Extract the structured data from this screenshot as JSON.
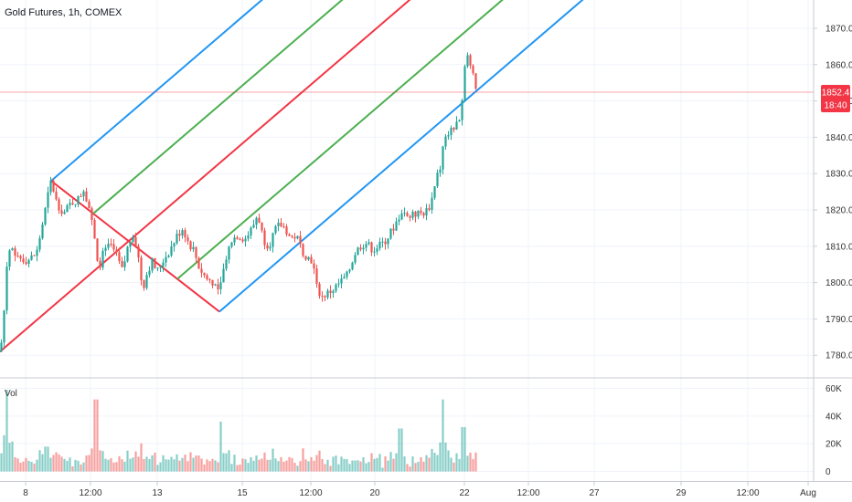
{
  "header": {
    "symbol_label": "Gold Futures, 1h, COMEX"
  },
  "volume_pane": {
    "label": "Vol"
  },
  "price_badge": {
    "price": "1852.4",
    "countdown": "18:40"
  },
  "colors": {
    "up": "#26a69a",
    "down": "#ef5350",
    "pitchfork_outer": "#2196f3",
    "pitchfork_inner": "#4caf50",
    "pitchfork_median": "#f23645"
  },
  "chart_data": {
    "type": "candlestick",
    "title": "Gold Futures, 1h, COMEX",
    "price_axis": {
      "ticks": [
        "1780.0",
        "1790.0",
        "1800.0",
        "1810.0",
        "1820.0",
        "1830.0",
        "1840.0",
        "1850.0",
        "1860.0",
        "1870.0"
      ],
      "ylim": [
        1775,
        1876
      ]
    },
    "time_axis": {
      "ticks": [
        "8",
        "12:00",
        "13",
        "15",
        "12:00",
        "20",
        "22",
        "12:00",
        "27",
        "29",
        "12:00",
        "Aug"
      ]
    },
    "volume_axis": {
      "ticks": [
        "60K",
        "40K",
        "20K",
        "0"
      ],
      "ylim": [
        0,
        62000
      ]
    },
    "last_price": 1852.4,
    "price_path": [
      [
        0,
        1781
      ],
      [
        3,
        1786
      ],
      [
        8,
        1807
      ],
      [
        12,
        1810
      ],
      [
        20,
        1807
      ],
      [
        30,
        1806
      ],
      [
        40,
        1808
      ],
      [
        48,
        1818
      ],
      [
        54,
        1826
      ],
      [
        56,
        1828
      ],
      [
        62,
        1822
      ],
      [
        70,
        1819
      ],
      [
        78,
        1822
      ],
      [
        86,
        1823
      ],
      [
        92,
        1826
      ],
      [
        98,
        1820
      ],
      [
        104,
        1812
      ],
      [
        108,
        1804
      ],
      [
        114,
        1809
      ],
      [
        122,
        1810
      ],
      [
        128,
        1807
      ],
      [
        134,
        1803
      ],
      [
        140,
        1810
      ],
      [
        146,
        1814
      ],
      [
        152,
        1806
      ],
      [
        156,
        1798
      ],
      [
        160,
        1802
      ],
      [
        166,
        1806
      ],
      [
        172,
        1803
      ],
      [
        178,
        1806
      ],
      [
        186,
        1809
      ],
      [
        194,
        1813
      ],
      [
        200,
        1815
      ],
      [
        206,
        1811
      ],
      [
        212,
        1809
      ],
      [
        218,
        1804
      ],
      [
        226,
        1801
      ],
      [
        234,
        1800
      ],
      [
        240,
        1797
      ],
      [
        244,
        1803
      ],
      [
        248,
        1808
      ],
      [
        254,
        1812
      ],
      [
        260,
        1813
      ],
      [
        268,
        1812
      ],
      [
        276,
        1815
      ],
      [
        282,
        1819
      ],
      [
        288,
        1812
      ],
      [
        294,
        1810
      ],
      [
        300,
        1814
      ],
      [
        306,
        1816
      ],
      [
        312,
        1815
      ],
      [
        318,
        1812
      ],
      [
        324,
        1813
      ],
      [
        330,
        1809
      ],
      [
        336,
        1807
      ],
      [
        342,
        1806
      ],
      [
        346,
        1799
      ],
      [
        352,
        1796
      ],
      [
        358,
        1797
      ],
      [
        364,
        1798
      ],
      [
        372,
        1800
      ],
      [
        380,
        1802
      ],
      [
        388,
        1808
      ],
      [
        394,
        1810
      ],
      [
        400,
        1811
      ],
      [
        408,
        1809
      ],
      [
        414,
        1810
      ],
      [
        420,
        1811
      ],
      [
        428,
        1814
      ],
      [
        434,
        1817
      ],
      [
        440,
        1820
      ],
      [
        448,
        1818
      ],
      [
        456,
        1819
      ],
      [
        462,
        1819
      ],
      [
        468,
        1820
      ],
      [
        474,
        1824
      ],
      [
        478,
        1829
      ],
      [
        482,
        1832
      ],
      [
        485,
        1838
      ],
      [
        490,
        1841
      ],
      [
        496,
        1842
      ],
      [
        502,
        1845
      ],
      [
        505,
        1848
      ],
      [
        507,
        1857
      ],
      [
        510,
        1864
      ],
      [
        514,
        1860
      ],
      [
        518,
        1858
      ],
      [
        522,
        1852
      ]
    ],
    "volume_bursts": [
      {
        "x": 8,
        "volume": 59000
      },
      {
        "x": 105,
        "volume": 52000
      },
      {
        "x": 242,
        "volume": 36000
      },
      {
        "x": 438,
        "volume": 31000
      },
      {
        "x": 484,
        "volume": 52000
      },
      {
        "x": 507,
        "volume": 32000
      }
    ],
    "pitchfork": {
      "points": [
        {
          "x": 56,
          "y": 1828
        },
        {
          "x": 240,
          "y": 1792
        },
        {
          "x": 195,
          "y": 1820
        }
      ],
      "lines": [
        "outer-upper",
        "inner-upper",
        "median",
        "inner-lower",
        "outer-lower"
      ]
    }
  }
}
